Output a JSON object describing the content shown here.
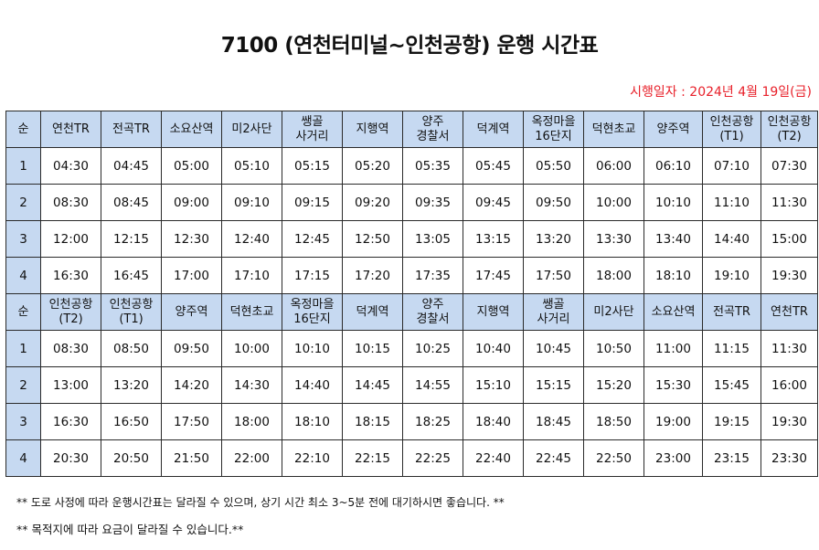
{
  "title": "7100 (연천터미널~인천공항) 운행 시간표",
  "effective_date": "시행일자 : 2024년 4월 19일(금)",
  "outbound": {
    "headers": [
      "순",
      "연천TR",
      "전곡TR",
      "소요산역",
      "미2사단",
      "쌩골\n사거리",
      "지행역",
      "양주\n경찰서",
      "덕계역",
      "옥정마을\n16단지",
      "덕현초교",
      "양주역",
      "인천공항\n(T1)",
      "인천공항\n(T2)"
    ],
    "rows": [
      [
        "1",
        "04:30",
        "04:45",
        "05:00",
        "05:10",
        "05:15",
        "05:20",
        "05:35",
        "05:45",
        "05:50",
        "06:00",
        "06:10",
        "07:10",
        "07:30"
      ],
      [
        "2",
        "08:30",
        "08:45",
        "09:00",
        "09:10",
        "09:15",
        "09:20",
        "09:35",
        "09:45",
        "09:50",
        "10:00",
        "10:10",
        "11:10",
        "11:30"
      ],
      [
        "3",
        "12:00",
        "12:15",
        "12:30",
        "12:40",
        "12:45",
        "12:50",
        "13:05",
        "13:15",
        "13:20",
        "13:30",
        "13:40",
        "14:40",
        "15:00"
      ],
      [
        "4",
        "16:30",
        "16:45",
        "17:00",
        "17:10",
        "17:15",
        "17:20",
        "17:35",
        "17:45",
        "17:50",
        "18:00",
        "18:10",
        "19:10",
        "19:30"
      ]
    ]
  },
  "inbound": {
    "headers": [
      "순",
      "인천공항\n(T2)",
      "인천공항\n(T1)",
      "양주역",
      "덕현초교",
      "옥정마을\n16단지",
      "덕계역",
      "양주\n경찰서",
      "지행역",
      "쌩골\n사거리",
      "미2사단",
      "소요산역",
      "전곡TR",
      "연천TR"
    ],
    "rows": [
      [
        "1",
        "08:30",
        "08:50",
        "09:50",
        "10:00",
        "10:10",
        "10:15",
        "10:25",
        "10:40",
        "10:45",
        "10:50",
        "11:00",
        "11:15",
        "11:30"
      ],
      [
        "2",
        "13:00",
        "13:20",
        "14:20",
        "14:30",
        "14:40",
        "14:45",
        "14:55",
        "15:10",
        "15:15",
        "15:20",
        "15:30",
        "15:45",
        "16:00"
      ],
      [
        "3",
        "16:30",
        "16:50",
        "17:50",
        "18:00",
        "18:10",
        "18:15",
        "18:25",
        "18:40",
        "18:45",
        "18:50",
        "19:00",
        "19:15",
        "19:30"
      ],
      [
        "4",
        "20:30",
        "20:50",
        "21:50",
        "22:00",
        "22:10",
        "22:15",
        "22:25",
        "22:40",
        "22:45",
        "22:50",
        "23:00",
        "23:15",
        "23:30"
      ]
    ]
  },
  "notes": [
    "** 도로 사정에 따라 운행시간표는 달라질 수 있으며, 상기 시간 최소 3~5분 전에 대기하시면 좋습니다. **",
    "** 목적지에 따라 요금이 달라질 수 있습니다.**"
  ]
}
